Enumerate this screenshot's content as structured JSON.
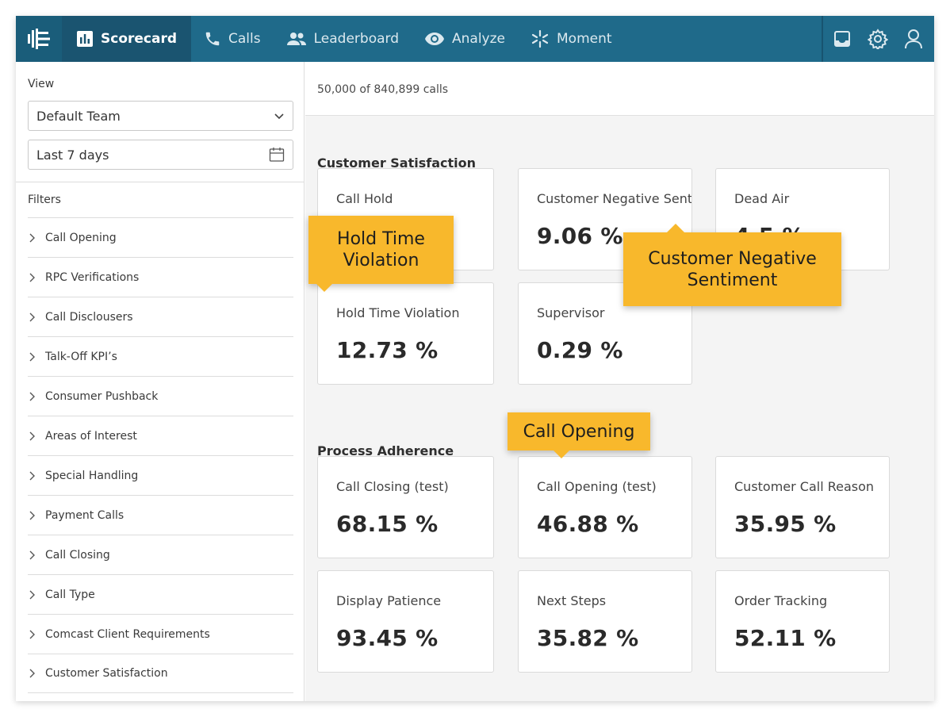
{
  "nav": {
    "items": [
      {
        "label": "Scorecard",
        "icon": "bar-chart-icon",
        "active": true
      },
      {
        "label": "Calls",
        "icon": "phone-icon"
      },
      {
        "label": "Leaderboard",
        "icon": "people-icon"
      },
      {
        "label": "Analyze",
        "icon": "eye-icon"
      },
      {
        "label": "Moment",
        "icon": "sparkle-icon"
      }
    ],
    "right_icons": [
      "inbox-icon",
      "gear-icon",
      "user-icon"
    ],
    "colors": {
      "bar": "#1f6a8a",
      "active": "#1a5470"
    }
  },
  "sidebar": {
    "view_label": "View",
    "team_select": "Default Team",
    "date_select": "Last 7 days",
    "filters_label": "Filters",
    "filters": [
      "Call Opening",
      "RPC Verifications",
      "Call Disclousers",
      "Talk-Off KPI’s",
      "Consumer Pushback",
      "Areas of Interest",
      "Special Handling",
      "Payment Calls",
      "Call Closing",
      "Call Type",
      "Comcast Client Requirements",
      "Customer Satisfaction"
    ]
  },
  "main": {
    "count_text": "50,000 of 840,899 calls",
    "sections": [
      {
        "title": "Customer Satisfaction",
        "cards": [
          {
            "label": "Call Hold",
            "value": ""
          },
          {
            "label": "Customer Negative Sentime",
            "value": "9.06 %"
          },
          {
            "label": "Dead Air",
            "value": "4.5 %"
          },
          {
            "label": "Hold Time Violation",
            "value": "12.73 %"
          },
          {
            "label": "Supervisor",
            "value": "0.29 %"
          }
        ]
      },
      {
        "title": "Process Adherence",
        "cards": [
          {
            "label": "Call Closing (test)",
            "value": "68.15 %"
          },
          {
            "label": "Call Opening (test)",
            "value": "46.88 %"
          },
          {
            "label": "Customer Call Reason",
            "value": "35.95 %"
          },
          {
            "label": "Display Patience",
            "value": "93.45 %"
          },
          {
            "label": "Next Steps",
            "value": "35.82 %"
          },
          {
            "label": "Order Tracking",
            "value": "52.11 %"
          }
        ]
      }
    ]
  },
  "callouts": {
    "hold_time": "Hold Time Violation",
    "negative_sentiment": "Customer Negative Sentiment",
    "call_opening": "Call Opening",
    "color": "#f8b82c"
  }
}
